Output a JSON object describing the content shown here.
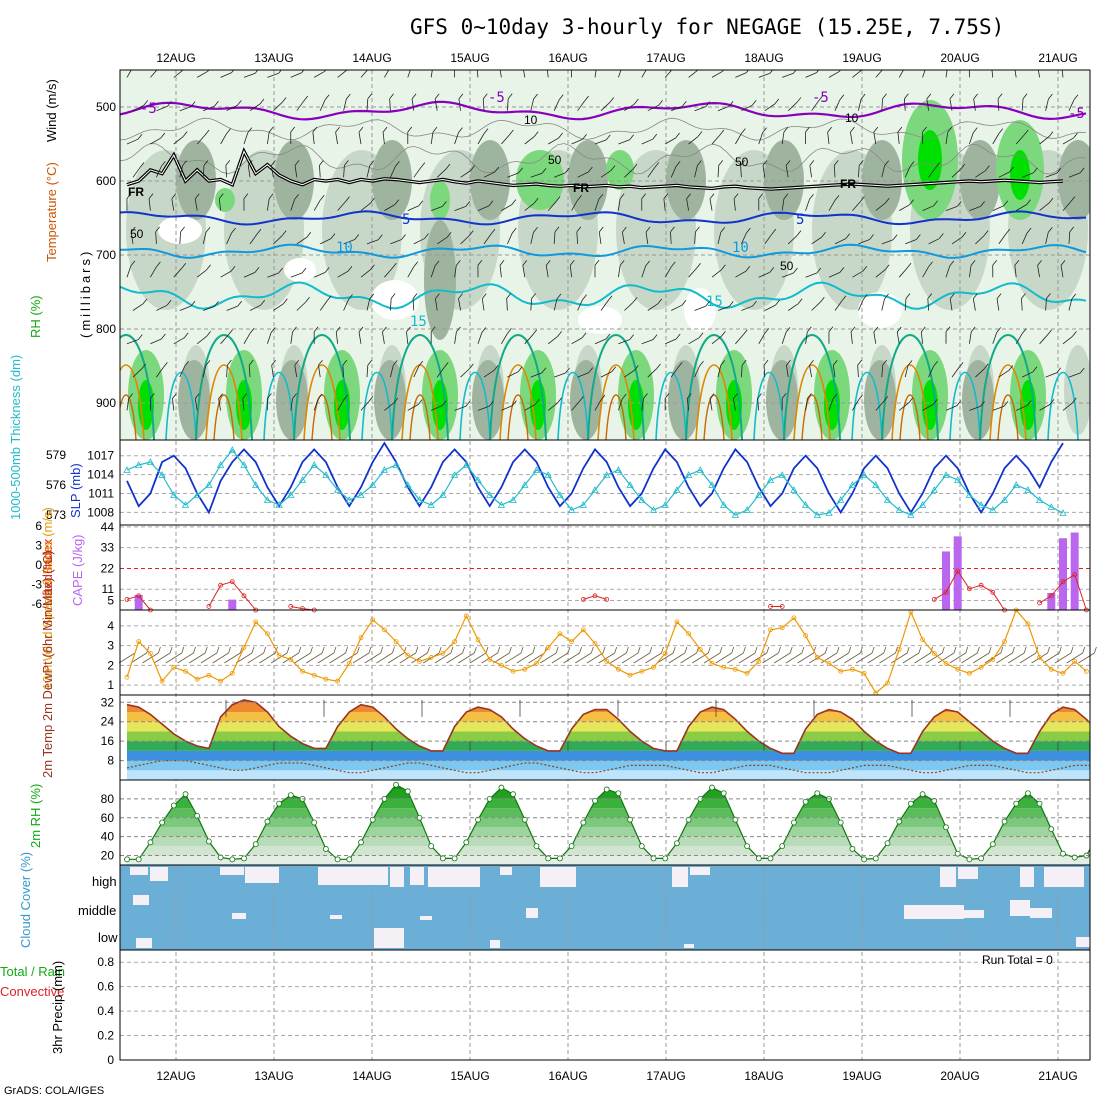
{
  "title": "GFS 0~10day 3-hourly for NEGAGE (15.25E, 7.75S)",
  "credit": "GrADS: COLA/IGES",
  "run_total": "Run Total = 0",
  "colors": {
    "rh_light": "#e8f4e8",
    "rh_mid": "#c8d8c8",
    "rh_dark": "#9fb49f",
    "rh_green": "#7cd87c",
    "rh_bright": "#00e000",
    "freezing": "#000000",
    "t_minus5": "#8800bb",
    "t_plus5": "#1133cc",
    "t_10": "#1199dd",
    "t_15": "#11bbcc",
    "t_20": "#11aa88",
    "t_warm": "#dd8800",
    "slp": "#1133cc",
    "thickness": "#22bbcc",
    "cape": "#bb66ee",
    "lifted": "#dd2222",
    "wind": "#ee9900",
    "temp_line": "#993322",
    "dewpt": "#884422",
    "rh2m_line": "#117711",
    "cloud": "#6baed6",
    "cloud_gap": "#f5f0f5"
  },
  "chart_data": [
    {
      "type": "heatmap",
      "name": "upper-air",
      "ylabel": "(millibars)",
      "ylabel_parts": [
        "RH (%)",
        "Temperature (°C)",
        "Wind (m/s)"
      ],
      "y_ticks": [
        500,
        600,
        700,
        800,
        900
      ],
      "ylim": [
        450,
        950
      ],
      "contour_labels": [
        "-5",
        "-5",
        "-5",
        "10",
        "10",
        "FR",
        "FR",
        "FR",
        "-5",
        "5",
        "5",
        "10",
        "10",
        "15",
        "15",
        "50",
        "50",
        "50",
        "50"
      ],
      "freezing_level_mb": [
        605,
        600,
        585,
        590,
        565,
        600,
        585,
        600,
        598,
        605,
        560,
        590,
        578,
        592,
        600,
        605,
        598,
        600,
        598,
        602,
        598,
        600,
        597,
        598,
        600,
        602,
        600,
        598,
        601,
        603,
        600,
        602,
        604,
        606,
        605,
        604,
        606,
        607,
        606,
        608,
        607,
        606,
        608,
        607,
        609,
        608,
        607,
        606,
        608,
        609,
        610,
        608,
        607,
        609,
        610,
        611,
        610,
        609,
        608,
        607,
        606,
        605,
        604,
        605,
        606,
        607,
        606,
        605,
        604,
        603,
        602,
        601,
        600,
        601,
        600,
        599,
        600,
        601,
        602,
        601,
        600
      ]
    },
    {
      "type": "line",
      "name": "slp-thickness",
      "ylabel_left": "1000-500mb Thickness (dm)",
      "ylabel_right": "SLP (mb)",
      "y_ticks_left": [
        573,
        576,
        579
      ],
      "y_ticks_right": [
        1008,
        1011,
        1014,
        1017
      ],
      "series": [
        {
          "name": "SLP (mb)",
          "axis": "right",
          "values": [
            1013,
            1009,
            1011,
            1016,
            1017,
            1015,
            1011,
            1008,
            1013,
            1016,
            1018,
            1016,
            1012,
            1009,
            1012,
            1016,
            1018,
            1016,
            1012,
            1009,
            1012,
            1016,
            1019,
            1016,
            1012,
            1009,
            1012,
            1016,
            1018,
            1016,
            1012,
            1009,
            1012,
            1016,
            1018,
            1016,
            1012,
            1009,
            1011,
            1015,
            1018,
            1016,
            1012,
            1009,
            1011,
            1015,
            1018,
            1016,
            1012,
            1009,
            1011,
            1015,
            1018,
            1016,
            1012,
            1009,
            1011,
            1015,
            1017,
            1015,
            1011,
            1008,
            1011,
            1015,
            1017,
            1015,
            1011,
            1008,
            1011,
            1015,
            1017,
            1015,
            1011,
            1008,
            1011,
            1015,
            1017,
            1015,
            1012,
            1016,
            1019
          ]
        },
        {
          "name": "Thickness (dm)",
          "axis": "left",
          "values": [
            577.5,
            578,
            578.3,
            577,
            575,
            574,
            575,
            576,
            578,
            579.5,
            578,
            576,
            574.5,
            574,
            575,
            576.5,
            578,
            577,
            575.5,
            574.5,
            575,
            576,
            577.5,
            578,
            576,
            574.5,
            574,
            575,
            577,
            578,
            576.5,
            575,
            574,
            574.5,
            576,
            577.5,
            577,
            575,
            573.5,
            574,
            575.5,
            577,
            577.5,
            576,
            574.5,
            573.5,
            574,
            575.5,
            577,
            577.5,
            576,
            574,
            573,
            573.5,
            575,
            576.5,
            577,
            575.5,
            574,
            573,
            573.2,
            574.5,
            576,
            577,
            576,
            574.5,
            573.5,
            573,
            574,
            575.5,
            577,
            576.5,
            575,
            574,
            573.5,
            574.5,
            576,
            575.5,
            574.5,
            573.8,
            573.2
          ]
        }
      ]
    },
    {
      "type": "bar",
      "name": "cape-lifted",
      "ylabel_left": "Lifted Index",
      "ylabel_right": "CAPE (J/kg)",
      "y_ticks_left": [
        "6",
        "3",
        "0",
        "-3",
        "-6"
      ],
      "y_ticks_right": [
        5,
        11,
        22,
        33,
        44
      ],
      "cape_bars": [
        {
          "i": 1,
          "v": 8
        },
        {
          "i": 9,
          "v": 5.5
        },
        {
          "i": 70,
          "v": 31
        },
        {
          "i": 71,
          "v": 39
        },
        {
          "i": 79,
          "v": 9
        },
        {
          "i": 80,
          "v": 38
        },
        {
          "i": 81,
          "v": 41
        }
      ],
      "lifted_segments": [
        {
          "i0": 0,
          "values": [
            4.5,
            4,
            6
          ]
        },
        {
          "i0": 7,
          "values": [
            5.5,
            2.5,
            2,
            4,
            6
          ]
        },
        {
          "i0": 14,
          "values": [
            5.5,
            5.8,
            6
          ]
        },
        {
          "i0": 39,
          "values": [
            4.5,
            4,
            4.5
          ]
        },
        {
          "i0": 55,
          "values": [
            5.5,
            5.5
          ]
        },
        {
          "i0": 69,
          "values": [
            4.5,
            3.5,
            0.5,
            3,
            2.5,
            3.5,
            6
          ]
        },
        {
          "i0": 78,
          "values": [
            5,
            4,
            2,
            1,
            6
          ]
        }
      ]
    },
    {
      "type": "line",
      "name": "wind-10m",
      "ylabel": "10m Wind Speed & Barbs (m/s)",
      "y_ticks": [
        1,
        2,
        3,
        4
      ],
      "ylim": [
        0.5,
        4.8
      ],
      "values": [
        1.4,
        3.2,
        2.6,
        1.2,
        1.9,
        1.7,
        1.3,
        1.5,
        1.2,
        1.6,
        2.9,
        4.2,
        3.6,
        2.5,
        2.3,
        1.7,
        1.5,
        1.3,
        1.2,
        2.1,
        3.4,
        4.3,
        3.8,
        3.2,
        2.5,
        2.2,
        2.4,
        2.6,
        3.2,
        4.5,
        3.3,
        2.3,
        2.0,
        1.7,
        1.8,
        2.1,
        2.9,
        3.6,
        3.2,
        3.8,
        3.1,
        2.2,
        1.8,
        1.5,
        1.7,
        1.9,
        2.6,
        4.2,
        3.6,
        2.8,
        2.1,
        1.9,
        1.8,
        1.6,
        2.2,
        3.8,
        3.9,
        4.4,
        3.5,
        2.4,
        2.1,
        1.7,
        1.8,
        1.6,
        0.6,
        1.1,
        2.8,
        4.7,
        3.3,
        2.6,
        2.1,
        1.8,
        1.6,
        1.9,
        2.3,
        3.2,
        4.8,
        4.1,
        2.4,
        1.8,
        1.6,
        2.2,
        1.7
      ]
    },
    {
      "type": "area",
      "name": "temp-2m",
      "ylabel": "2m Temp 2m DewPt (6hr Min/Max) (°C)",
      "y_ticks": [
        8,
        16,
        24,
        32
      ],
      "ylim": [
        0,
        35
      ],
      "temp": [
        31,
        30,
        27,
        23,
        19,
        16,
        14,
        13,
        26,
        31,
        33,
        32,
        28,
        22,
        18,
        15,
        13,
        13,
        22,
        28,
        31,
        30,
        26,
        21,
        17,
        14,
        12,
        12,
        22,
        28,
        30,
        29,
        26,
        21,
        17,
        14,
        12,
        12,
        21,
        27,
        29,
        29,
        25,
        20,
        16,
        13,
        12,
        12,
        22,
        28,
        30,
        29,
        25,
        20,
        16,
        13,
        11,
        11,
        21,
        27,
        29,
        28,
        25,
        20,
        16,
        13,
        11,
        11,
        20,
        26,
        29,
        28,
        24,
        20,
        16,
        13,
        11,
        11,
        20,
        27,
        30,
        29,
        25,
        20,
        16,
        13,
        11
      ],
      "dewpt": [
        5,
        6,
        7,
        8,
        8,
        8,
        7,
        6,
        5,
        4,
        4,
        5,
        6,
        7,
        7,
        7,
        6,
        5,
        4,
        3,
        3,
        4,
        5,
        6,
        7,
        7,
        6,
        5,
        4,
        3,
        3,
        4,
        5,
        6,
        7,
        7,
        6,
        5,
        4,
        3,
        3,
        4,
        5,
        6,
        6,
        6,
        6,
        5,
        4,
        3,
        3,
        4,
        5,
        6,
        6,
        6,
        5,
        4,
        3,
        3,
        3,
        4,
        5,
        6,
        6,
        6,
        5,
        4,
        3,
        3,
        4,
        5,
        6,
        6,
        6,
        5,
        4,
        3,
        3,
        4,
        5,
        6,
        6,
        6,
        7,
        8,
        8
      ]
    },
    {
      "type": "area",
      "name": "rh-2m",
      "ylabel": "2m RH (%)",
      "y_ticks": [
        20,
        40,
        60,
        80
      ],
      "ylim": [
        10,
        100
      ],
      "values": [
        16,
        16,
        34,
        55,
        73,
        85,
        62,
        35,
        18,
        16,
        17,
        32,
        56,
        75,
        84,
        80,
        55,
        27,
        16,
        16,
        34,
        58,
        80,
        95,
        88,
        60,
        30,
        17,
        17,
        34,
        58,
        80,
        92,
        85,
        58,
        30,
        17,
        17,
        30,
        55,
        78,
        90,
        86,
        58,
        30,
        17,
        17,
        33,
        58,
        80,
        92,
        86,
        58,
        30,
        17,
        17,
        30,
        55,
        77,
        86,
        80,
        55,
        27,
        16,
        17,
        33,
        56,
        75,
        85,
        78,
        50,
        22,
        16,
        17,
        32,
        56,
        75,
        86,
        75,
        48,
        22,
        18,
        20,
        42,
        72,
        92,
        90
      ]
    },
    {
      "type": "bar",
      "name": "cloud-cover",
      "ylabel": "Cloud Cover (%)",
      "level_labels": [
        "high",
        "middle",
        "low"
      ]
    },
    {
      "type": "bar",
      "name": "precip-3hr",
      "ylabel_parts": [
        "Total / Rain",
        "Convective",
        "3hr Precip (mm)"
      ],
      "y_ticks": [
        "0",
        "0.2",
        "0.4",
        "0.6",
        "0.8"
      ],
      "ylim": [
        0,
        0.9
      ],
      "values": []
    }
  ],
  "date_labels": [
    "12AUG",
    "13AUG",
    "14AUG",
    "15AUG",
    "16AUG",
    "17AUG",
    "18AUG",
    "19AUG",
    "20AUG",
    "21AUG"
  ]
}
